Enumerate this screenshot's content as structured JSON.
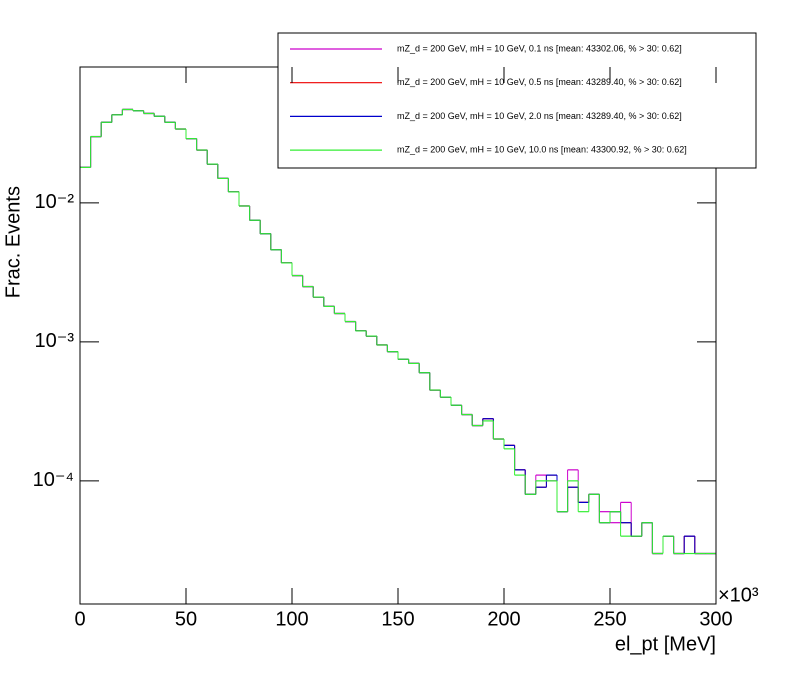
{
  "chart_data": {
    "type": "histogram",
    "xlabel": "el_pt [MeV]",
    "x_multiplier": "×10³",
    "ylabel": "Frac. Events",
    "log_y": true,
    "legend": "upper right",
    "xlim": [
      0,
      300
    ],
    "xticks": [
      0,
      50,
      100,
      150,
      200,
      250,
      300
    ],
    "ylim": [
      1.3e-05,
      0.095
    ],
    "yticks": [
      {
        "value": 0.0001,
        "label": "10⁻⁴"
      },
      {
        "value": 0.001,
        "label": "10⁻³"
      },
      {
        "value": 0.01,
        "label": "10⁻²"
      }
    ],
    "bins": [
      0,
      5,
      10,
      15,
      20,
      25,
      30,
      35,
      40,
      45,
      50,
      55,
      60,
      65,
      70,
      75,
      80,
      85,
      90,
      95,
      100,
      105,
      110,
      115,
      120,
      125,
      130,
      135,
      140,
      145,
      150,
      155,
      160,
      165,
      170,
      175,
      180,
      185,
      190,
      195,
      200,
      205,
      210,
      215,
      220,
      225,
      230,
      235,
      240,
      245,
      250,
      255,
      260,
      265,
      270,
      275,
      280,
      285,
      290,
      295,
      300
    ],
    "series": [
      {
        "name": "mZ_d = 200 GeV, mH = 10 GeV, 0.1 ns [mean: 43302.06, % > 30: 0.62]",
        "color": "#cc00cc",
        "values": [
          0.018,
          0.03,
          0.038,
          0.043,
          0.047,
          0.046,
          0.044,
          0.042,
          0.038,
          0.034,
          0.029,
          0.024,
          0.019,
          0.015,
          0.012,
          0.0095,
          0.0075,
          0.006,
          0.0046,
          0.0037,
          0.003,
          0.0025,
          0.0021,
          0.0018,
          0.0016,
          0.0014,
          0.0012,
          0.0011,
          0.00095,
          0.00085,
          0.00075,
          0.0007,
          0.0006,
          0.00045,
          0.0004,
          0.00035,
          0.0003,
          0.00025,
          0.00028,
          0.0002,
          0.00018,
          0.00012,
          8e-05,
          0.00011,
          0.0001,
          6e-05,
          0.00012,
          7e-05,
          8e-05,
          6e-05,
          5e-05,
          7e-05,
          4e-05,
          5e-05,
          3e-05,
          4e-05,
          3e-05,
          4e-05,
          3e-05,
          3e-05
        ]
      },
      {
        "name": "mZ_d = 200 GeV, mH = 10 GeV, 0.5 ns [mean: 43289.40, % > 30: 0.62]",
        "color": "#ee0000",
        "values": [
          0.018,
          0.03,
          0.038,
          0.043,
          0.047,
          0.046,
          0.044,
          0.042,
          0.038,
          0.034,
          0.029,
          0.024,
          0.019,
          0.015,
          0.012,
          0.0095,
          0.0075,
          0.006,
          0.0046,
          0.0037,
          0.003,
          0.0025,
          0.0021,
          0.0018,
          0.0016,
          0.0014,
          0.0012,
          0.0011,
          0.00095,
          0.00085,
          0.00075,
          0.0007,
          0.0006,
          0.00045,
          0.0004,
          0.00035,
          0.0003,
          0.00025,
          0.00028,
          0.0002,
          0.00018,
          0.00012,
          8e-05,
          9e-05,
          0.00011,
          6e-05,
          9e-05,
          7e-05,
          8e-05,
          5e-05,
          6e-05,
          5e-05,
          4e-05,
          5e-05,
          3e-05,
          4e-05,
          3e-05,
          4e-05,
          3e-05,
          3e-05
        ]
      },
      {
        "name": "mZ_d = 200 GeV, mH = 10 GeV, 2.0 ns [mean: 43289.40, % > 30: 0.62]",
        "color": "#0000cc",
        "values": [
          0.018,
          0.03,
          0.038,
          0.043,
          0.047,
          0.046,
          0.044,
          0.042,
          0.038,
          0.034,
          0.029,
          0.024,
          0.019,
          0.015,
          0.012,
          0.0095,
          0.0075,
          0.006,
          0.0046,
          0.0037,
          0.003,
          0.0025,
          0.0021,
          0.0018,
          0.0016,
          0.0014,
          0.0012,
          0.0011,
          0.00095,
          0.00085,
          0.00075,
          0.0007,
          0.0006,
          0.00045,
          0.0004,
          0.00035,
          0.0003,
          0.00025,
          0.00028,
          0.0002,
          0.00018,
          0.00012,
          8e-05,
          9e-05,
          0.00011,
          6e-05,
          9e-05,
          7e-05,
          8e-05,
          5e-05,
          6e-05,
          5e-05,
          4e-05,
          5e-05,
          3e-05,
          4e-05,
          3e-05,
          4e-05,
          3e-05,
          3e-05
        ]
      },
      {
        "name": "mZ_d = 200 GeV, mH = 10 GeV, 10.0 ns [mean: 43300.92, % > 30: 0.62]",
        "color": "#33ee33",
        "values": [
          0.018,
          0.03,
          0.038,
          0.043,
          0.047,
          0.046,
          0.044,
          0.042,
          0.038,
          0.034,
          0.029,
          0.024,
          0.019,
          0.015,
          0.012,
          0.0095,
          0.0075,
          0.006,
          0.0046,
          0.0037,
          0.003,
          0.0025,
          0.0021,
          0.0018,
          0.0016,
          0.0014,
          0.0012,
          0.0011,
          0.00095,
          0.00085,
          0.00075,
          0.0007,
          0.0006,
          0.00045,
          0.0004,
          0.00035,
          0.0003,
          0.00025,
          0.00027,
          0.0002,
          0.00017,
          0.00011,
          8e-05,
          0.0001,
          0.0001,
          6e-05,
          0.0001,
          6e-05,
          8e-05,
          5e-05,
          6e-05,
          4e-05,
          4e-05,
          5e-05,
          3e-05,
          4e-05,
          3e-05,
          3e-05,
          3e-05,
          3e-05
        ]
      }
    ]
  }
}
